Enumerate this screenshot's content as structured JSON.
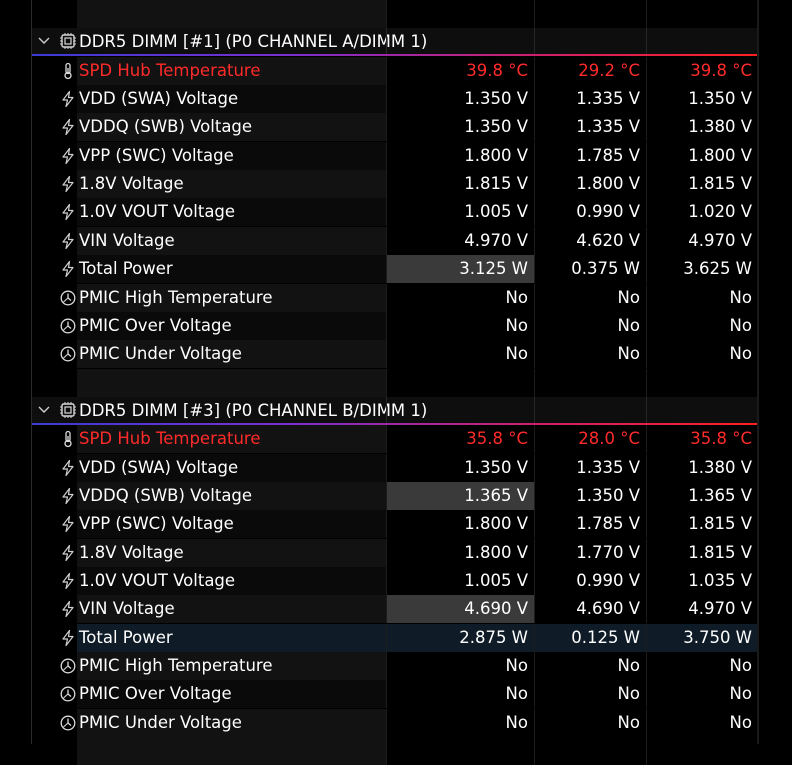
{
  "sections": [
    {
      "title": "DDR5 DIMM [#1] (P0 CHANNEL A/DIMM 1)",
      "rows": [
        {
          "label": "SPD Hub Temperature",
          "icon": "thermometer-icon",
          "v1": "39.8 °C",
          "v2": "29.2 °C",
          "v3": "39.8 °C",
          "red": true
        },
        {
          "label": "VDD (SWA) Voltage",
          "icon": "lightning-icon",
          "v1": "1.350 V",
          "v2": "1.335 V",
          "v3": "1.350 V"
        },
        {
          "label": "VDDQ (SWB) Voltage",
          "icon": "lightning-icon",
          "v1": "1.350 V",
          "v2": "1.335 V",
          "v3": "1.380 V"
        },
        {
          "label": "VPP (SWC) Voltage",
          "icon": "lightning-icon",
          "v1": "1.800 V",
          "v2": "1.785 V",
          "v3": "1.800 V"
        },
        {
          "label": "1.8V Voltage",
          "icon": "lightning-icon",
          "v1": "1.815 V",
          "v2": "1.800 V",
          "v3": "1.815 V"
        },
        {
          "label": "1.0V VOUT Voltage",
          "icon": "lightning-icon",
          "v1": "1.005 V",
          "v2": "0.990 V",
          "v3": "1.020 V"
        },
        {
          "label": "VIN Voltage",
          "icon": "lightning-icon",
          "v1": "4.970 V",
          "v2": "4.620 V",
          "v3": "4.970 V"
        },
        {
          "label": "Total Power",
          "icon": "lightning-icon",
          "v1": "3.125 W",
          "v2": "0.375 W",
          "v3": "3.625 W",
          "hl1": true
        },
        {
          "label": "PMIC High Temperature",
          "icon": "clock-icon",
          "v1": "No",
          "v2": "No",
          "v3": "No"
        },
        {
          "label": "PMIC Over Voltage",
          "icon": "clock-icon",
          "v1": "No",
          "v2": "No",
          "v3": "No"
        },
        {
          "label": "PMIC Under Voltage",
          "icon": "clock-icon",
          "v1": "No",
          "v2": "No",
          "v3": "No"
        }
      ]
    },
    {
      "title": "DDR5 DIMM [#3] (P0 CHANNEL B/DIMM 1)",
      "rows": [
        {
          "label": "SPD Hub Temperature",
          "icon": "thermometer-icon",
          "v1": "35.8 °C",
          "v2": "28.0 °C",
          "v3": "35.8 °C",
          "red": true
        },
        {
          "label": "VDD (SWA) Voltage",
          "icon": "lightning-icon",
          "v1": "1.350 V",
          "v2": "1.335 V",
          "v3": "1.380 V"
        },
        {
          "label": "VDDQ (SWB) Voltage",
          "icon": "lightning-icon",
          "v1": "1.365 V",
          "v2": "1.350 V",
          "v3": "1.365 V",
          "hl1": true
        },
        {
          "label": "VPP (SWC) Voltage",
          "icon": "lightning-icon",
          "v1": "1.800 V",
          "v2": "1.785 V",
          "v3": "1.815 V"
        },
        {
          "label": "1.8V Voltage",
          "icon": "lightning-icon",
          "v1": "1.800 V",
          "v2": "1.770 V",
          "v3": "1.815 V"
        },
        {
          "label": "1.0V VOUT Voltage",
          "icon": "lightning-icon",
          "v1": "1.005 V",
          "v2": "0.990 V",
          "v3": "1.035 V"
        },
        {
          "label": "VIN Voltage",
          "icon": "lightning-icon",
          "v1": "4.690 V",
          "v2": "4.690 V",
          "v3": "4.970 V",
          "hl1": true
        },
        {
          "label": "Total Power",
          "icon": "lightning-icon",
          "v1": "2.875 W",
          "v2": "0.125 W",
          "v3": "3.750 W",
          "selected": true
        },
        {
          "label": "PMIC High Temperature",
          "icon": "clock-icon",
          "v1": "No",
          "v2": "No",
          "v3": "No"
        },
        {
          "label": "PMIC Over Voltage",
          "icon": "clock-icon",
          "v1": "No",
          "v2": "No",
          "v3": "No"
        },
        {
          "label": "PMIC Under Voltage",
          "icon": "clock-icon",
          "v1": "No",
          "v2": "No",
          "v3": "No"
        }
      ]
    }
  ],
  "colors": {
    "accent_red": "#ff2a2a",
    "selected_row": "#0f1b26",
    "highlight_cell": "#3a3a3a"
  }
}
